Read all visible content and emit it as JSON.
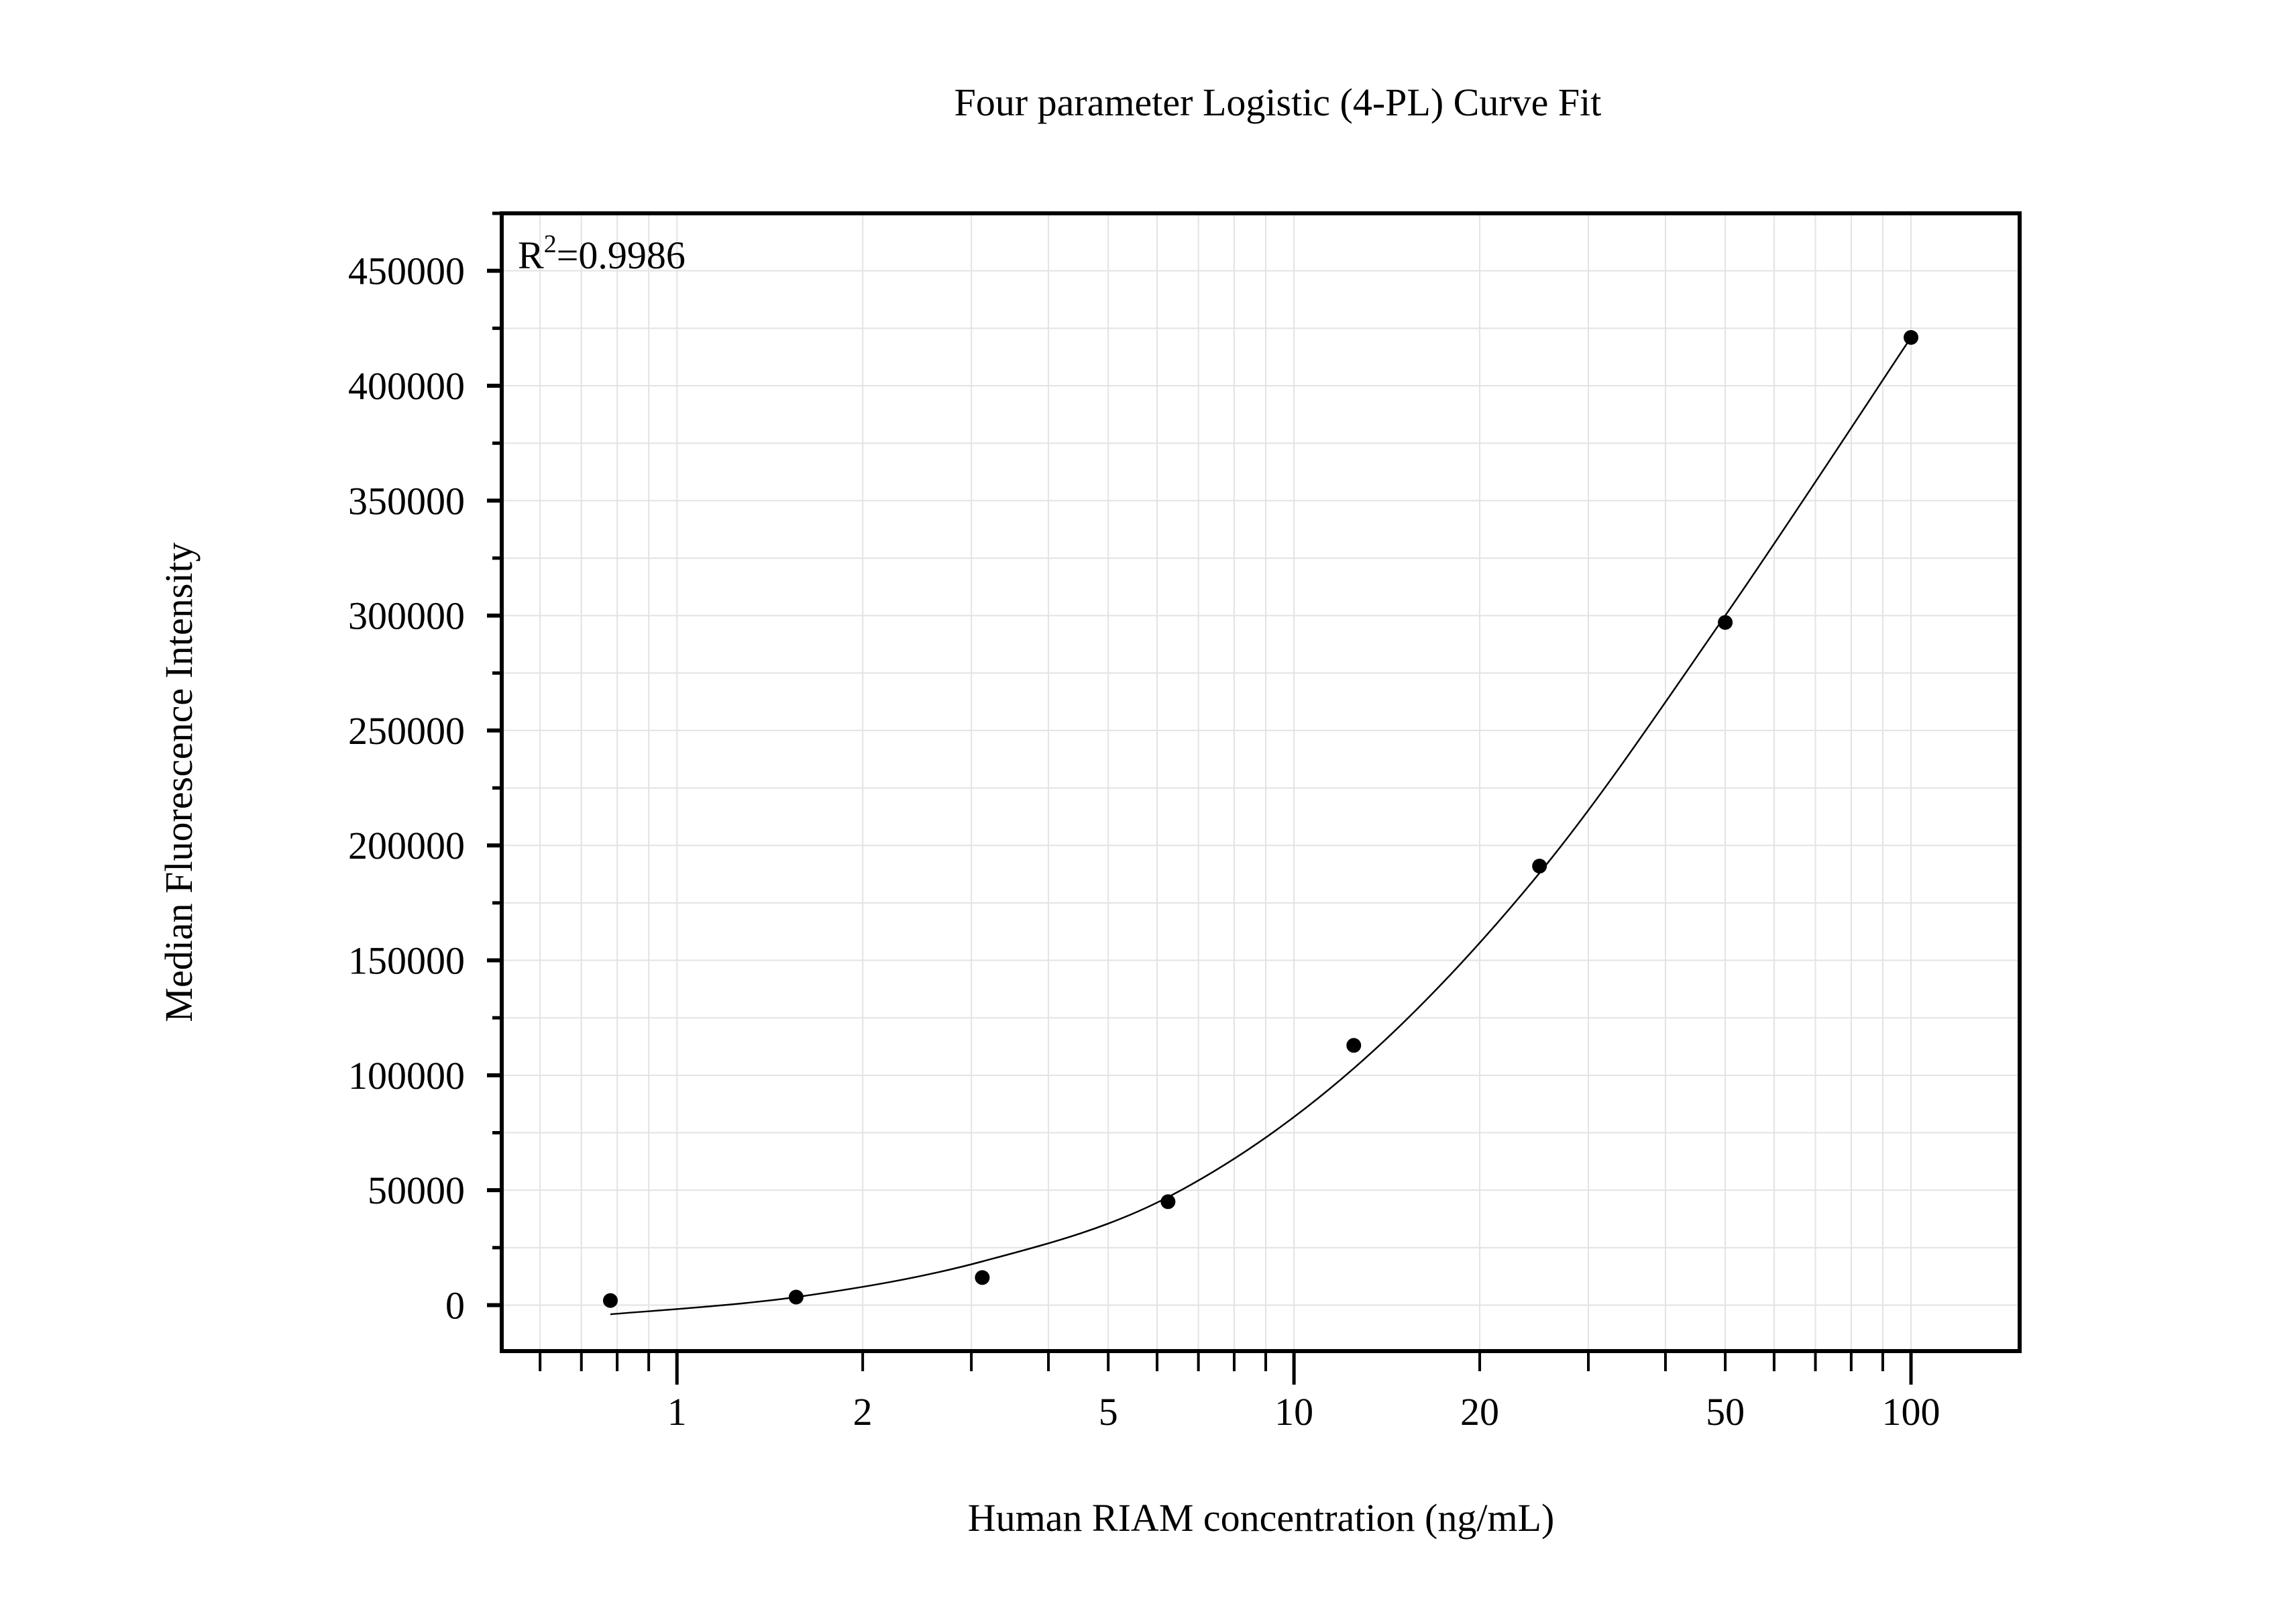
{
  "chart_data": {
    "type": "scatter",
    "title": "Four parameter Logistic (4-PL) Curve Fit",
    "xlabel": "Human RIAM concentration (ng/mL)",
    "ylabel": "Median Fluorescence Intensity",
    "x_scale": "log",
    "xlim": [
      0.52,
      150
    ],
    "ylim": [
      -20000,
      475000
    ],
    "x_ticks": [
      1,
      2,
      5,
      10,
      20,
      50,
      100
    ],
    "x_tick_labels": [
      "1",
      "2",
      "5",
      "10",
      "20",
      "50",
      "100"
    ],
    "y_ticks": [
      0,
      50000,
      100000,
      150000,
      200000,
      250000,
      300000,
      350000,
      400000,
      450000
    ],
    "y_tick_labels": [
      "0",
      "50000",
      "100000",
      "150000",
      "200000",
      "250000",
      "300000",
      "350000",
      "400000",
      "450000"
    ],
    "grid": true,
    "annotation": {
      "base": "R",
      "sup": "2",
      "value": "=0.9986"
    },
    "points": {
      "x": [
        0.78,
        1.56,
        3.125,
        6.25,
        12.5,
        25,
        50,
        100
      ],
      "y": [
        2000,
        3500,
        12000,
        45000,
        113000,
        191000,
        297000,
        421000
      ]
    },
    "fit_curve": {
      "x": [
        0.78,
        1.56,
        3.125,
        6.25,
        12.5,
        25,
        50,
        100
      ],
      "y": [
        -4000,
        3500,
        19000,
        47000,
        103000,
        188000,
        300000,
        421000
      ]
    },
    "colors": {
      "points": "#000000",
      "curve": "#000000",
      "grid": "#e3e3e3",
      "frame": "#000000"
    }
  }
}
